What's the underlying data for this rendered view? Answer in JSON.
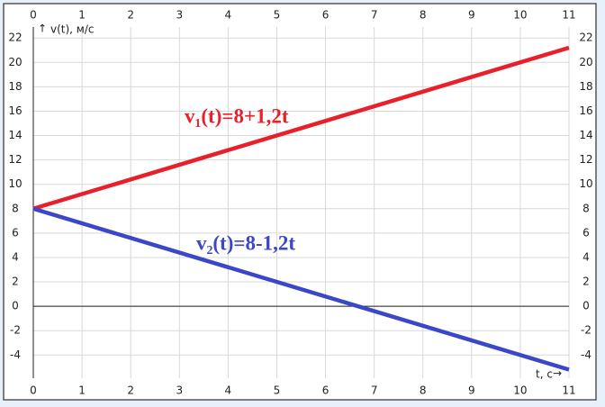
{
  "chart_data": {
    "type": "line",
    "x": [
      0,
      11
    ],
    "series": [
      {
        "name": "v₁(t)=8+1,2t",
        "color": "#e8202a",
        "values": [
          8,
          21.2
        ]
      },
      {
        "name": "v₂(t)=8-1,2t",
        "color": "#3c46c8",
        "values": [
          8,
          -5.2
        ]
      }
    ],
    "xlabel": "t, с",
    "ylabel": "v(t), м/с",
    "xlim": [
      0,
      11
    ],
    "ylim": [
      -5.9,
      22.9
    ],
    "xticks": [
      0,
      1,
      2,
      3,
      4,
      5,
      6,
      7,
      8,
      9,
      10,
      11
    ],
    "yticks": [
      -4,
      -2,
      0,
      2,
      4,
      6,
      8,
      10,
      12,
      14,
      16,
      18,
      20,
      22
    ],
    "grid": true
  }
}
